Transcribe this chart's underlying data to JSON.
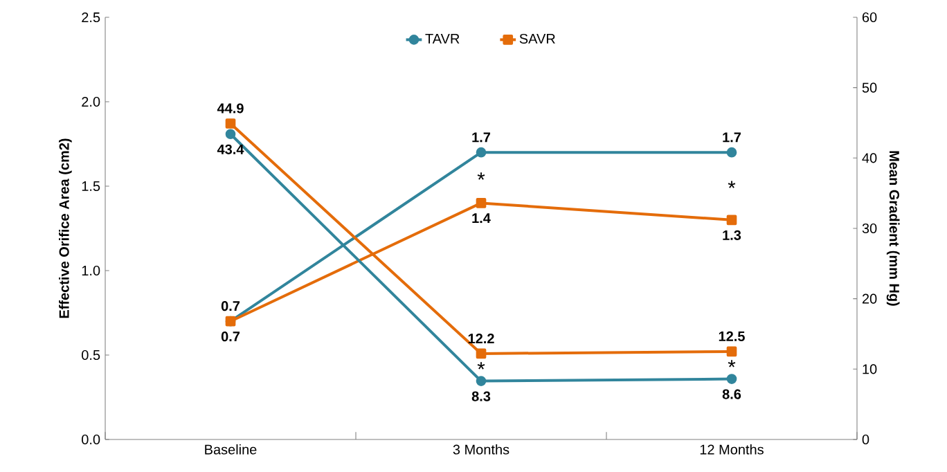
{
  "chart_data": {
    "type": "line",
    "ylabel": "Effective Orifice Area (cm2)",
    "y2label": "Mean Gradient (mm Hg)",
    "categories": [
      "Baseline",
      "3 Months",
      "12 Months"
    ],
    "series": [
      {
        "name": "TAVR",
        "color": "#31859C",
        "marker": "circle",
        "values": [
          0.7,
          1.7,
          1.7
        ]
      },
      {
        "name": "SAVR",
        "color": "#E46C0A",
        "marker": "square",
        "values": [
          0.7,
          1.4,
          1.3
        ]
      },
      {
        "color": "#31859C",
        "marker": "circle",
        "axis": "y2",
        "values": [
          43.4,
          8.3,
          8.6
        ]
      },
      {
        "color": "#E46C0A",
        "marker": "square",
        "axis": "y2",
        "values": [
          44.9,
          12.2,
          12.5
        ]
      }
    ],
    "ylim": [
      0,
      2.5
    ],
    "yticks": [
      {
        "value": 0,
        "label": "0.0"
      },
      {
        "value": 0.5,
        "label": "0.5"
      },
      {
        "value": 1,
        "label": "1.0"
      },
      {
        "value": 1.5,
        "label": "1.5"
      },
      {
        "value": 2,
        "label": "2.0"
      },
      {
        "value": 2.5,
        "label": "2.5"
      }
    ],
    "y2lim": [
      0,
      60
    ],
    "y2ticks": [
      0,
      10,
      20,
      30,
      40,
      50,
      60
    ],
    "data_labels": true,
    "legend": "top",
    "grid": false,
    "line_style": "solid",
    "annotations": [
      "*",
      "*",
      "*",
      "*"
    ]
  }
}
